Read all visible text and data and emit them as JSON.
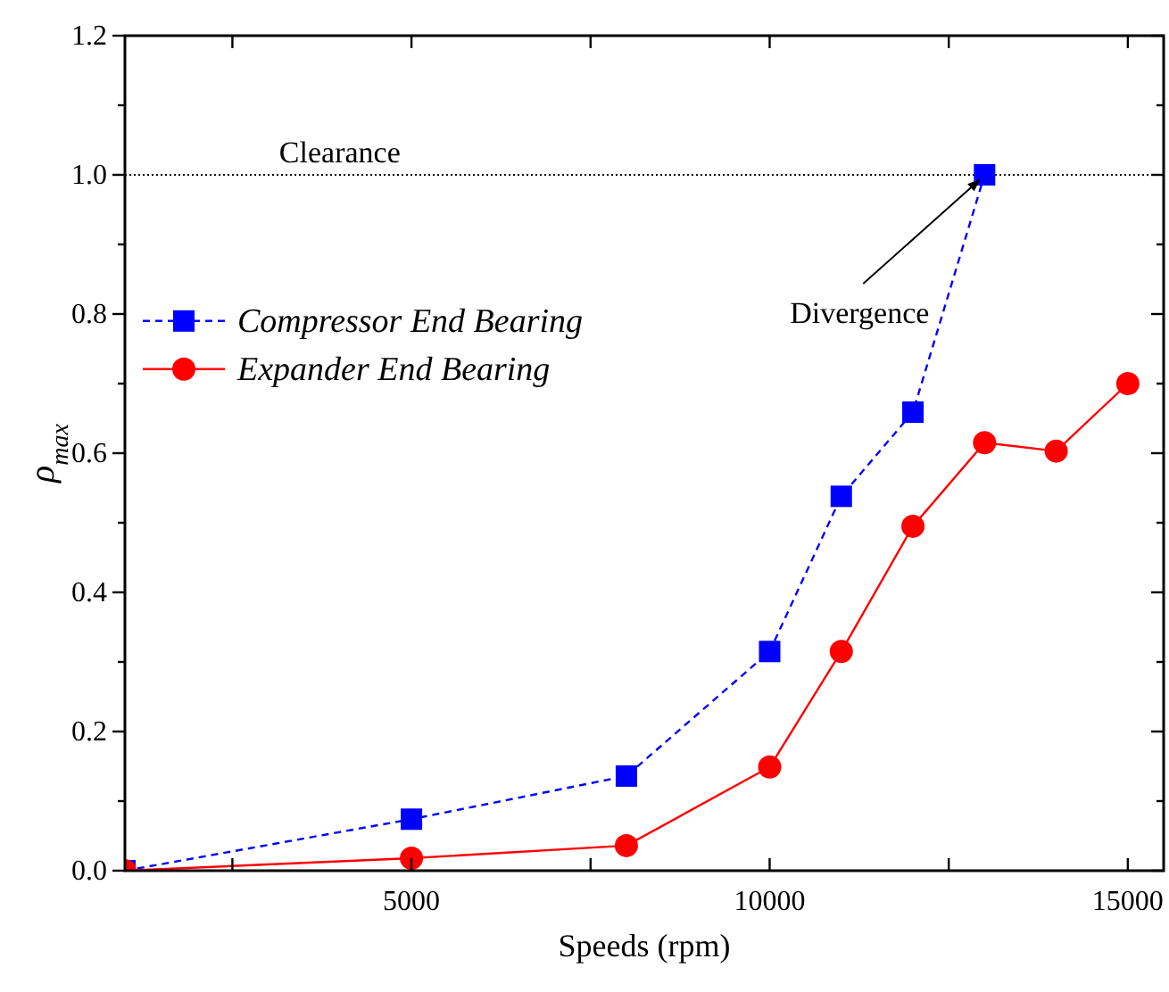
{
  "chart_data": {
    "type": "line",
    "xlabel": "Speeds (rpm)",
    "ylabel": "ρ$_{max}$",
    "xlim": [
      1000,
      15500
    ],
    "ylim": [
      0,
      1.2
    ],
    "xticks": [
      {
        "value": 2500,
        "label": null
      },
      5000,
      {
        "value": 7500,
        "label": null
      },
      10000,
      {
        "value": 12500,
        "label": null
      },
      15000
    ],
    "yticks": [
      {
        "value": 0,
        "label": "0.0"
      },
      {
        "value": 0.1,
        "label": null
      },
      0.2,
      {
        "value": 0.3,
        "label": null
      },
      0.4,
      {
        "value": 0.5,
        "label": null
      },
      0.6,
      {
        "value": 0.7,
        "label": null
      },
      0.8,
      {
        "value": 0.9,
        "label": null
      },
      {
        "value": 1,
        "label": "1.0"
      },
      {
        "value": 1.1,
        "label": null
      },
      1.2
    ],
    "legend": "left",
    "grid": false,
    "series": [
      {
        "name": "Compressor End Bearing",
        "color": "#0000ff",
        "marker": "square",
        "line_style": "dashed",
        "x": [
          1000,
          5000,
          8000,
          10000,
          11000,
          12000,
          13000
        ],
        "values": [
          0,
          0.074,
          0.136,
          0.315,
          0.538,
          0.659,
          1.0
        ]
      },
      {
        "name": "Expander End Bearing",
        "color": "#ff0000",
        "marker": "circle",
        "line_style": "solid",
        "x": [
          1000,
          5000,
          8000,
          10000,
          11000,
          12000,
          13000,
          14000,
          15000
        ],
        "values": [
          0,
          0.018,
          0.036,
          0.149,
          0.315,
          0.495,
          0.615,
          0.603,
          0.7
        ]
      }
    ],
    "ref_lines": [
      {
        "axis": "y",
        "value": 1.0,
        "label": "Clearance",
        "line_style": "dotted",
        "color": "#000000"
      }
    ],
    "annotations": [
      {
        "text": "Divergence",
        "x": 13000,
        "y": 1.0
      }
    ]
  }
}
